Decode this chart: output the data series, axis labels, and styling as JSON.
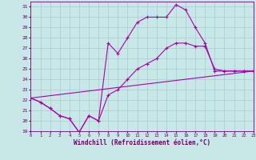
{
  "xlabel": "Windchill (Refroidissement éolien,°C)",
  "xlim": [
    0,
    23
  ],
  "ylim": [
    19,
    31.5
  ],
  "yticks": [
    19,
    20,
    21,
    22,
    23,
    24,
    25,
    26,
    27,
    28,
    29,
    30,
    31
  ],
  "xticks": [
    0,
    1,
    2,
    3,
    4,
    5,
    6,
    7,
    8,
    9,
    10,
    11,
    12,
    13,
    14,
    15,
    16,
    17,
    18,
    19,
    20,
    21,
    22,
    23
  ],
  "bg_color": "#c8e8e8",
  "line_color": "#aa00aa",
  "grid_color": "#aacccc",
  "line1_x": [
    0,
    1,
    2,
    3,
    4,
    5,
    6,
    7,
    8,
    9,
    10,
    11,
    12,
    13,
    14,
    15,
    16,
    17,
    18,
    19,
    20,
    21,
    22,
    23
  ],
  "line1_y": [
    22.2,
    21.8,
    21.2,
    20.5,
    20.2,
    18.9,
    20.5,
    20.0,
    27.5,
    26.5,
    28.0,
    29.5,
    30.0,
    30.0,
    30.0,
    31.2,
    30.7,
    29.0,
    27.5,
    24.8,
    24.8,
    24.8,
    24.8,
    24.8
  ],
  "line2_x": [
    0,
    1,
    2,
    3,
    4,
    5,
    6,
    7,
    8,
    9,
    10,
    11,
    12,
    13,
    14,
    15,
    16,
    17,
    18,
    19,
    20,
    21,
    22,
    23
  ],
  "line2_y": [
    22.2,
    21.8,
    21.2,
    20.5,
    20.2,
    18.9,
    20.5,
    20.0,
    22.5,
    23.0,
    24.0,
    25.0,
    25.5,
    26.0,
    27.0,
    27.5,
    27.5,
    27.2,
    27.2,
    25.0,
    24.8,
    24.8,
    24.8,
    24.8
  ],
  "line3_x": [
    0,
    23
  ],
  "line3_y": [
    22.2,
    24.8
  ]
}
